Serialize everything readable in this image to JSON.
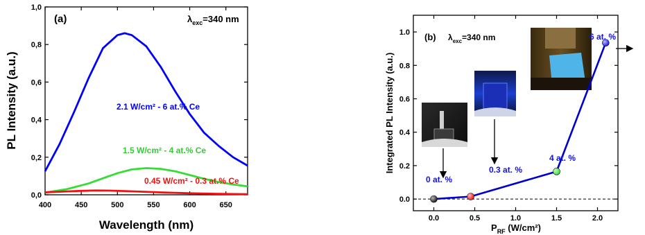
{
  "chart_data": [
    {
      "type": "line",
      "panel_label": "(a)",
      "annotation": "λexc=340 nm",
      "annotation_main": "λ",
      "annotation_sub": "exc",
      "annotation_tail": "=340 nm",
      "xlabel": "Wavelength (nm)",
      "ylabel": "PL Intensity (a.u.)",
      "xlim": [
        400,
        680
      ],
      "ylim": [
        0,
        1.0
      ],
      "x_ticks": [
        400,
        450,
        500,
        550,
        600,
        650
      ],
      "y_ticks": [
        0.0,
        0.2,
        0.4,
        0.6,
        0.8,
        1.0
      ],
      "x_tick_labels": [
        "400",
        "450",
        "500",
        "550",
        "600",
        "650"
      ],
      "y_tick_labels": [
        "0,0",
        "0,2",
        "0,4",
        "0,6",
        "0,8",
        "1,0"
      ],
      "grid": false,
      "series": [
        {
          "name": "2.1 W/cm² - 6 at.% Ce",
          "color": "#0000ff",
          "x": [
            400,
            420,
            440,
            460,
            480,
            500,
            510,
            520,
            540,
            560,
            580,
            600,
            620,
            640,
            660,
            680
          ],
          "y": [
            0.125,
            0.27,
            0.44,
            0.62,
            0.78,
            0.85,
            0.86,
            0.85,
            0.79,
            0.68,
            0.55,
            0.43,
            0.33,
            0.26,
            0.2,
            0.155
          ]
        },
        {
          "name": "1.5 W/cm² - 4 at.% Ce",
          "color": "#33dd33",
          "x": [
            400,
            430,
            460,
            480,
            500,
            520,
            540,
            560,
            580,
            600,
            620,
            640,
            660,
            680
          ],
          "y": [
            0.012,
            0.03,
            0.06,
            0.088,
            0.115,
            0.135,
            0.142,
            0.138,
            0.125,
            0.105,
            0.085,
            0.068,
            0.055,
            0.045
          ]
        },
        {
          "name": "0.45 W/cm² - 0.3 at.% Ce",
          "color": "#ee1111",
          "x": [
            400,
            430,
            450,
            470,
            490,
            510,
            530,
            560,
            600,
            640,
            680
          ],
          "y": [
            0.013,
            0.018,
            0.021,
            0.023,
            0.022,
            0.02,
            0.017,
            0.013,
            0.008,
            0.005,
            0.003
          ]
        }
      ]
    },
    {
      "type": "line",
      "panel_label": "(b)",
      "annotation": "λexc=340 nm",
      "annotation_main": "λ",
      "annotation_sub": "exc",
      "annotation_tail": "=340 nm",
      "xlabel": "PRF (W/cm²)",
      "xlabel_main": "P",
      "xlabel_sub": "RF",
      "xlabel_tail": " (W/cm²)",
      "ylabel": "Integrated PL Intensity (a.u.)",
      "xlim": [
        -0.25,
        2.25
      ],
      "ylim": [
        -0.07,
        1.1
      ],
      "x_ticks": [
        0.0,
        0.5,
        1.0,
        1.5,
        2.0
      ],
      "y_ticks": [
        0.0,
        0.2,
        0.4,
        0.6,
        0.8,
        1.0
      ],
      "x_tick_labels": [
        "0.0",
        "0.5",
        "1.0",
        "1.5",
        "2.0"
      ],
      "y_tick_labels": [
        "0.0",
        "0.2",
        "0.4",
        "0.6",
        "0.8",
        "1.0"
      ],
      "grid": false,
      "series": [
        {
          "color": "#0000cc",
          "x": [
            0.0,
            0.45,
            1.5,
            2.1
          ],
          "y": [
            0.0,
            0.015,
            0.165,
            0.935
          ],
          "point_colors": [
            "#111111",
            "#ee1111",
            "#33dd33",
            "#1111ee"
          ],
          "point_labels": [
            "0 at. %",
            "0.3 at. %",
            "4 at. %",
            "6 at. %"
          ]
        }
      ],
      "reference_line_y": 0.0
    }
  ]
}
